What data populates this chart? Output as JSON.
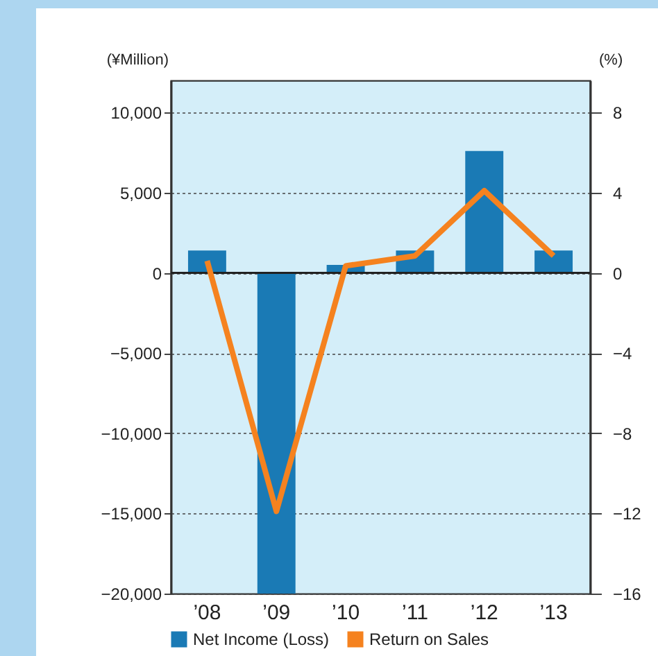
{
  "chart_data": {
    "type": "bar",
    "ylabel": "(¥Million)",
    "y2label": "(%)",
    "categories": [
      "’08",
      "’09",
      "’10",
      "’11",
      "’12",
      "’13"
    ],
    "series": [
      {
        "name": "Net Income (Loss)",
        "color": "#1a7ab5",
        "values": [
          1400,
          -20000,
          500,
          1400,
          7600,
          1400
        ]
      },
      {
        "name": "Return on Sales",
        "type": "line",
        "axis": "y2",
        "color": "#f5821f",
        "values": [
          0.6,
          -11.9,
          0.35,
          0.85,
          4.1,
          0.85
        ]
      }
    ],
    "ylim": [
      -20000,
      12000
    ],
    "yticks": [
      {
        "value": -20000,
        "label": "−20,000"
      },
      {
        "value": -15000,
        "label": "−15,000"
      },
      {
        "value": -10000,
        "label": "−10,000"
      },
      {
        "value": -5000,
        "label": "−5,000"
      },
      0,
      {
        "value": 5000,
        "label": "5,000"
      },
      {
        "value": 10000,
        "label": "10,000"
      }
    ],
    "y2lim": [
      -16,
      9.6
    ],
    "y2ticks": [
      {
        "value": -16,
        "label": "−16"
      },
      {
        "value": -12,
        "label": "−12"
      },
      {
        "value": -8,
        "label": "−8"
      },
      {
        "value": -4,
        "label": "−4"
      },
      0,
      4,
      8
    ],
    "ref_lines": [
      {
        "axis": "y",
        "value": 0
      }
    ],
    "grid": "y",
    "legend": "bottom"
  }
}
